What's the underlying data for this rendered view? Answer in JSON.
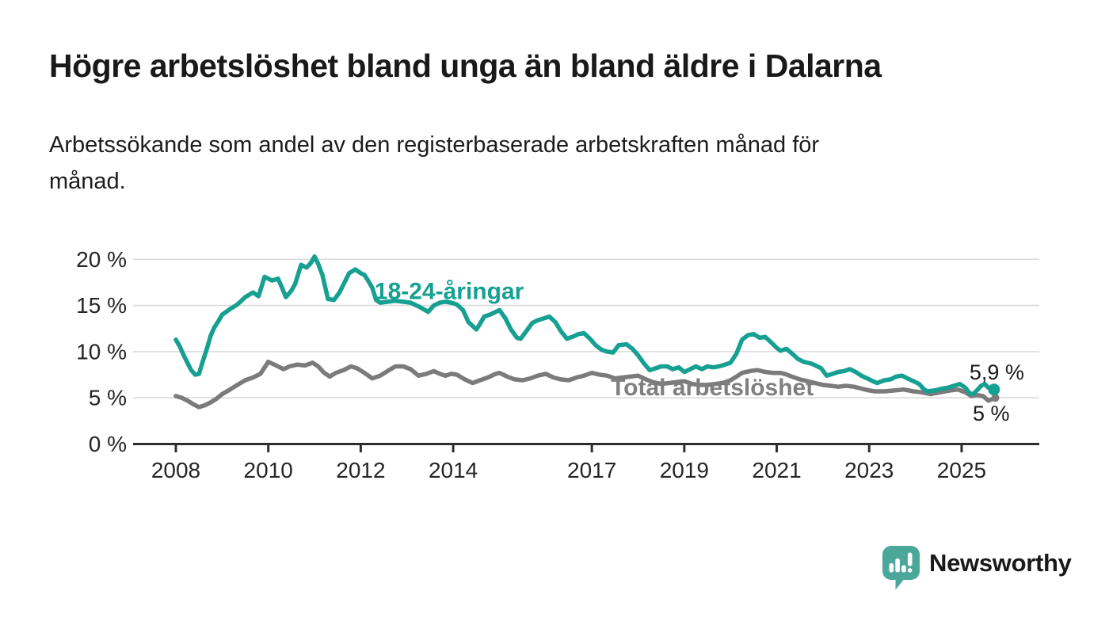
{
  "chart_data": {
    "type": "line",
    "title": "Högre arbetslöshet bland unga än bland äldre i Dalarna",
    "subtitle_lines": [
      "Arbetssökande som andel av den registerbaserade arbetskraften månad för",
      "månad."
    ],
    "xlabel": "",
    "ylabel": "",
    "grid": "horizontal",
    "legend_position": "inline-labels",
    "xlim": [
      2007.6,
      2026.5
    ],
    "ylim": [
      0,
      21.5
    ],
    "x_ticks": [
      2008,
      2010,
      2012,
      2014,
      2017,
      2019,
      2021,
      2023,
      2025
    ],
    "x_tick_labels": [
      "2008",
      "2010",
      "2012",
      "2014",
      "2017",
      "2019",
      "2021",
      "2023",
      "2025"
    ],
    "y_ticks": [
      0,
      5,
      10,
      15,
      20
    ],
    "y_tick_labels": [
      "0 %",
      "5 %",
      "10 %",
      "15 %",
      "20 %"
    ],
    "colors": {
      "youth_line": "#16a091",
      "total_line": "#7b7b7b",
      "total_label": "#7f7f7f",
      "annotation": "#1a1a1a",
      "gridline": "#dadada",
      "axis": "#2e2e2e",
      "tick_label": "#262626"
    },
    "series": [
      {
        "name": "Total arbetslöshet",
        "color": "#7b7b7b",
        "label": {
          "text": "Total arbetslöshet",
          "x": 2017.41,
          "y": 5.27
        },
        "end_dot_radius": 5,
        "points": [
          [
            2008.0,
            5.2
          ],
          [
            2008.13,
            5.0
          ],
          [
            2008.25,
            4.7
          ],
          [
            2008.38,
            4.3
          ],
          [
            2008.5,
            4.0
          ],
          [
            2008.63,
            4.2
          ],
          [
            2008.75,
            4.5
          ],
          [
            2008.88,
            4.9
          ],
          [
            2009.0,
            5.4
          ],
          [
            2009.17,
            5.9
          ],
          [
            2009.33,
            6.4
          ],
          [
            2009.5,
            6.9
          ],
          [
            2009.67,
            7.2
          ],
          [
            2009.83,
            7.6
          ],
          [
            2010.0,
            8.9
          ],
          [
            2010.13,
            8.6
          ],
          [
            2010.25,
            8.3
          ],
          [
            2010.33,
            8.1
          ],
          [
            2010.46,
            8.4
          ],
          [
            2010.63,
            8.6
          ],
          [
            2010.79,
            8.5
          ],
          [
            2010.96,
            8.8
          ],
          [
            2011.08,
            8.4
          ],
          [
            2011.21,
            7.7
          ],
          [
            2011.33,
            7.3
          ],
          [
            2011.46,
            7.7
          ],
          [
            2011.63,
            8.0
          ],
          [
            2011.79,
            8.4
          ],
          [
            2011.92,
            8.2
          ],
          [
            2012.08,
            7.7
          ],
          [
            2012.25,
            7.1
          ],
          [
            2012.42,
            7.4
          ],
          [
            2012.58,
            7.9
          ],
          [
            2012.75,
            8.4
          ],
          [
            2012.92,
            8.4
          ],
          [
            2013.08,
            8.1
          ],
          [
            2013.25,
            7.4
          ],
          [
            2013.42,
            7.6
          ],
          [
            2013.58,
            7.9
          ],
          [
            2013.71,
            7.6
          ],
          [
            2013.83,
            7.4
          ],
          [
            2013.96,
            7.6
          ],
          [
            2014.08,
            7.5
          ],
          [
            2014.25,
            7.0
          ],
          [
            2014.42,
            6.6
          ],
          [
            2014.58,
            6.9
          ],
          [
            2014.75,
            7.2
          ],
          [
            2014.92,
            7.6
          ],
          [
            2015.0,
            7.7
          ],
          [
            2015.17,
            7.3
          ],
          [
            2015.33,
            7.0
          ],
          [
            2015.5,
            6.9
          ],
          [
            2015.67,
            7.1
          ],
          [
            2015.83,
            7.4
          ],
          [
            2016.0,
            7.6
          ],
          [
            2016.17,
            7.2
          ],
          [
            2016.33,
            7.0
          ],
          [
            2016.5,
            6.9
          ],
          [
            2016.67,
            7.2
          ],
          [
            2016.83,
            7.4
          ],
          [
            2017.0,
            7.7
          ],
          [
            2017.17,
            7.5
          ],
          [
            2017.33,
            7.4
          ],
          [
            2017.5,
            7.1
          ],
          [
            2017.67,
            7.2
          ],
          [
            2017.83,
            7.3
          ],
          [
            2018.0,
            7.4
          ],
          [
            2018.17,
            7.0
          ],
          [
            2018.33,
            6.7
          ],
          [
            2018.5,
            6.5
          ],
          [
            2018.67,
            6.6
          ],
          [
            2018.83,
            6.7
          ],
          [
            2019.0,
            6.8
          ],
          [
            2019.17,
            6.5
          ],
          [
            2019.33,
            6.4
          ],
          [
            2019.5,
            6.4
          ],
          [
            2019.67,
            6.5
          ],
          [
            2019.83,
            6.6
          ],
          [
            2020.0,
            6.9
          ],
          [
            2020.13,
            7.3
          ],
          [
            2020.25,
            7.7
          ],
          [
            2020.42,
            7.9
          ],
          [
            2020.58,
            8.0
          ],
          [
            2020.75,
            7.8
          ],
          [
            2020.92,
            7.7
          ],
          [
            2021.08,
            7.7
          ],
          [
            2021.17,
            7.6
          ],
          [
            2021.33,
            7.3
          ],
          [
            2021.5,
            7.0
          ],
          [
            2021.67,
            6.8
          ],
          [
            2021.83,
            6.6
          ],
          [
            2022.0,
            6.4
          ],
          [
            2022.17,
            6.3
          ],
          [
            2022.33,
            6.2
          ],
          [
            2022.5,
            6.3
          ],
          [
            2022.67,
            6.2
          ],
          [
            2022.83,
            6.0
          ],
          [
            2023.0,
            5.8
          ],
          [
            2023.13,
            5.7
          ],
          [
            2023.33,
            5.7
          ],
          [
            2023.54,
            5.8
          ],
          [
            2023.75,
            5.9
          ],
          [
            2023.96,
            5.7
          ],
          [
            2024.13,
            5.6
          ],
          [
            2024.33,
            5.4
          ],
          [
            2024.54,
            5.6
          ],
          [
            2024.75,
            5.8
          ],
          [
            2024.92,
            5.9
          ],
          [
            2025.08,
            5.6
          ],
          [
            2025.21,
            5.2
          ],
          [
            2025.33,
            5.3
          ],
          [
            2025.46,
            5.2
          ],
          [
            2025.58,
            4.7
          ],
          [
            2025.73,
            5.0
          ]
        ]
      },
      {
        "name": "18-24-åringar",
        "color": "#16a091",
        "label": {
          "text": "18-24-åringar",
          "x": 2012.3,
          "y": 15.7
        },
        "end_dot_radius": 7.5,
        "points": [
          [
            2008.0,
            11.3
          ],
          [
            2008.08,
            10.6
          ],
          [
            2008.17,
            9.6
          ],
          [
            2008.25,
            8.8
          ],
          [
            2008.33,
            8.0
          ],
          [
            2008.42,
            7.5
          ],
          [
            2008.5,
            7.6
          ],
          [
            2008.58,
            8.9
          ],
          [
            2008.67,
            10.3
          ],
          [
            2008.75,
            11.7
          ],
          [
            2008.83,
            12.6
          ],
          [
            2008.92,
            13.3
          ],
          [
            2009.0,
            14.0
          ],
          [
            2009.17,
            14.6
          ],
          [
            2009.33,
            15.1
          ],
          [
            2009.5,
            15.9
          ],
          [
            2009.67,
            16.4
          ],
          [
            2009.79,
            16.0
          ],
          [
            2009.92,
            18.1
          ],
          [
            2010.08,
            17.7
          ],
          [
            2010.21,
            17.9
          ],
          [
            2010.29,
            17.0
          ],
          [
            2010.38,
            15.9
          ],
          [
            2010.5,
            16.6
          ],
          [
            2010.58,
            17.3
          ],
          [
            2010.71,
            19.4
          ],
          [
            2010.83,
            19.1
          ],
          [
            2010.92,
            19.6
          ],
          [
            2011.0,
            20.3
          ],
          [
            2011.08,
            19.5
          ],
          [
            2011.17,
            18.3
          ],
          [
            2011.29,
            15.7
          ],
          [
            2011.42,
            15.6
          ],
          [
            2011.54,
            16.4
          ],
          [
            2011.63,
            17.3
          ],
          [
            2011.75,
            18.5
          ],
          [
            2011.88,
            18.9
          ],
          [
            2012.0,
            18.5
          ],
          [
            2012.08,
            18.3
          ],
          [
            2012.17,
            17.6
          ],
          [
            2012.25,
            16.9
          ],
          [
            2012.33,
            15.6
          ],
          [
            2012.42,
            15.3
          ],
          [
            2012.58,
            15.4
          ],
          [
            2012.75,
            15.5
          ],
          [
            2012.92,
            15.4
          ],
          [
            2013.08,
            15.3
          ],
          [
            2013.25,
            14.9
          ],
          [
            2013.46,
            14.3
          ],
          [
            2013.58,
            15.0
          ],
          [
            2013.71,
            15.3
          ],
          [
            2013.83,
            15.4
          ],
          [
            2013.96,
            15.3
          ],
          [
            2014.08,
            15.1
          ],
          [
            2014.21,
            14.5
          ],
          [
            2014.33,
            13.2
          ],
          [
            2014.5,
            12.4
          ],
          [
            2014.58,
            13.0
          ],
          [
            2014.67,
            13.8
          ],
          [
            2014.79,
            14.0
          ],
          [
            2014.92,
            14.3
          ],
          [
            2015.0,
            14.5
          ],
          [
            2015.13,
            13.6
          ],
          [
            2015.25,
            12.4
          ],
          [
            2015.38,
            11.5
          ],
          [
            2015.46,
            11.4
          ],
          [
            2015.58,
            12.2
          ],
          [
            2015.71,
            13.1
          ],
          [
            2015.83,
            13.4
          ],
          [
            2015.96,
            13.6
          ],
          [
            2016.08,
            13.8
          ],
          [
            2016.21,
            13.2
          ],
          [
            2016.33,
            12.2
          ],
          [
            2016.46,
            11.4
          ],
          [
            2016.58,
            11.6
          ],
          [
            2016.71,
            11.9
          ],
          [
            2016.83,
            12.0
          ],
          [
            2016.96,
            11.4
          ],
          [
            2017.08,
            10.7
          ],
          [
            2017.21,
            10.2
          ],
          [
            2017.33,
            10.0
          ],
          [
            2017.46,
            9.9
          ],
          [
            2017.58,
            10.7
          ],
          [
            2017.75,
            10.8
          ],
          [
            2017.88,
            10.3
          ],
          [
            2018.0,
            9.6
          ],
          [
            2018.13,
            8.7
          ],
          [
            2018.25,
            8.0
          ],
          [
            2018.38,
            8.2
          ],
          [
            2018.5,
            8.4
          ],
          [
            2018.63,
            8.4
          ],
          [
            2018.75,
            8.1
          ],
          [
            2018.88,
            8.3
          ],
          [
            2019.0,
            7.8
          ],
          [
            2019.13,
            8.1
          ],
          [
            2019.25,
            8.4
          ],
          [
            2019.38,
            8.1
          ],
          [
            2019.5,
            8.4
          ],
          [
            2019.63,
            8.3
          ],
          [
            2019.75,
            8.4
          ],
          [
            2019.88,
            8.6
          ],
          [
            2020.0,
            8.8
          ],
          [
            2020.13,
            9.8
          ],
          [
            2020.25,
            11.3
          ],
          [
            2020.38,
            11.8
          ],
          [
            2020.5,
            11.9
          ],
          [
            2020.63,
            11.5
          ],
          [
            2020.75,
            11.6
          ],
          [
            2020.88,
            11.0
          ],
          [
            2021.0,
            10.4
          ],
          [
            2021.08,
            10.1
          ],
          [
            2021.21,
            10.3
          ],
          [
            2021.33,
            9.8
          ],
          [
            2021.46,
            9.2
          ],
          [
            2021.58,
            8.9
          ],
          [
            2021.75,
            8.7
          ],
          [
            2021.88,
            8.4
          ],
          [
            2021.96,
            8.2
          ],
          [
            2022.08,
            7.4
          ],
          [
            2022.21,
            7.6
          ],
          [
            2022.33,
            7.8
          ],
          [
            2022.46,
            7.9
          ],
          [
            2022.58,
            8.1
          ],
          [
            2022.71,
            7.8
          ],
          [
            2022.83,
            7.4
          ],
          [
            2022.96,
            7.1
          ],
          [
            2023.08,
            6.8
          ],
          [
            2023.17,
            6.6
          ],
          [
            2023.33,
            6.9
          ],
          [
            2023.46,
            7.0
          ],
          [
            2023.58,
            7.3
          ],
          [
            2023.71,
            7.4
          ],
          [
            2023.83,
            7.1
          ],
          [
            2023.96,
            6.8
          ],
          [
            2024.08,
            6.5
          ],
          [
            2024.17,
            6.0
          ],
          [
            2024.25,
            5.7
          ],
          [
            2024.42,
            5.8
          ],
          [
            2024.58,
            6.0
          ],
          [
            2024.71,
            6.1
          ],
          [
            2024.83,
            6.3
          ],
          [
            2024.96,
            6.5
          ],
          [
            2025.08,
            6.1
          ],
          [
            2025.17,
            5.5
          ],
          [
            2025.25,
            5.4
          ],
          [
            2025.33,
            5.8
          ],
          [
            2025.42,
            6.3
          ],
          [
            2025.5,
            6.5
          ],
          [
            2025.58,
            6.1
          ],
          [
            2025.7,
            5.9
          ]
        ]
      }
    ],
    "annotations": [
      {
        "text": "5,9 %",
        "x": 2025.17,
        "y": 6.99
      },
      {
        "text": "5 %",
        "x": 2025.24,
        "y": 2.53
      }
    ]
  },
  "logo": {
    "text": "Newsworthy",
    "color": "#3fa396",
    "icon_color": "#4ca79b",
    "icon": "newsworthy-speech-bubble-bar-chart"
  }
}
